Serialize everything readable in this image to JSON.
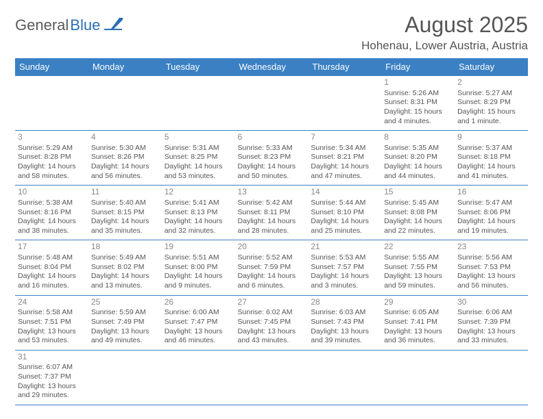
{
  "logo": {
    "dark": "General",
    "blue": "Blue"
  },
  "title": "August 2025",
  "location": "Hohenau, Lower Austria, Austria",
  "colors": {
    "header_bg": "#3a80c3",
    "header_text": "#ffffff",
    "border": "#3a80c3",
    "daynum": "#888888",
    "body_text": "#555555",
    "logo_dark": "#5a5a5a",
    "logo_blue": "#2a6fb5"
  },
  "weekdays": [
    "Sunday",
    "Monday",
    "Tuesday",
    "Wednesday",
    "Thursday",
    "Friday",
    "Saturday"
  ],
  "weeks": [
    [
      null,
      null,
      null,
      null,
      null,
      {
        "n": "1",
        "sr": "Sunrise: 5:26 AM",
        "ss": "Sunset: 8:31 PM",
        "d1": "Daylight: 15 hours",
        "d2": "and 4 minutes."
      },
      {
        "n": "2",
        "sr": "Sunrise: 5:27 AM",
        "ss": "Sunset: 8:29 PM",
        "d1": "Daylight: 15 hours",
        "d2": "and 1 minute."
      }
    ],
    [
      {
        "n": "3",
        "sr": "Sunrise: 5:29 AM",
        "ss": "Sunset: 8:28 PM",
        "d1": "Daylight: 14 hours",
        "d2": "and 58 minutes."
      },
      {
        "n": "4",
        "sr": "Sunrise: 5:30 AM",
        "ss": "Sunset: 8:26 PM",
        "d1": "Daylight: 14 hours",
        "d2": "and 56 minutes."
      },
      {
        "n": "5",
        "sr": "Sunrise: 5:31 AM",
        "ss": "Sunset: 8:25 PM",
        "d1": "Daylight: 14 hours",
        "d2": "and 53 minutes."
      },
      {
        "n": "6",
        "sr": "Sunrise: 5:33 AM",
        "ss": "Sunset: 8:23 PM",
        "d1": "Daylight: 14 hours",
        "d2": "and 50 minutes."
      },
      {
        "n": "7",
        "sr": "Sunrise: 5:34 AM",
        "ss": "Sunset: 8:21 PM",
        "d1": "Daylight: 14 hours",
        "d2": "and 47 minutes."
      },
      {
        "n": "8",
        "sr": "Sunrise: 5:35 AM",
        "ss": "Sunset: 8:20 PM",
        "d1": "Daylight: 14 hours",
        "d2": "and 44 minutes."
      },
      {
        "n": "9",
        "sr": "Sunrise: 5:37 AM",
        "ss": "Sunset: 8:18 PM",
        "d1": "Daylight: 14 hours",
        "d2": "and 41 minutes."
      }
    ],
    [
      {
        "n": "10",
        "sr": "Sunrise: 5:38 AM",
        "ss": "Sunset: 8:16 PM",
        "d1": "Daylight: 14 hours",
        "d2": "and 38 minutes."
      },
      {
        "n": "11",
        "sr": "Sunrise: 5:40 AM",
        "ss": "Sunset: 8:15 PM",
        "d1": "Daylight: 14 hours",
        "d2": "and 35 minutes."
      },
      {
        "n": "12",
        "sr": "Sunrise: 5:41 AM",
        "ss": "Sunset: 8:13 PM",
        "d1": "Daylight: 14 hours",
        "d2": "and 32 minutes."
      },
      {
        "n": "13",
        "sr": "Sunrise: 5:42 AM",
        "ss": "Sunset: 8:11 PM",
        "d1": "Daylight: 14 hours",
        "d2": "and 28 minutes."
      },
      {
        "n": "14",
        "sr": "Sunrise: 5:44 AM",
        "ss": "Sunset: 8:10 PM",
        "d1": "Daylight: 14 hours",
        "d2": "and 25 minutes."
      },
      {
        "n": "15",
        "sr": "Sunrise: 5:45 AM",
        "ss": "Sunset: 8:08 PM",
        "d1": "Daylight: 14 hours",
        "d2": "and 22 minutes."
      },
      {
        "n": "16",
        "sr": "Sunrise: 5:47 AM",
        "ss": "Sunset: 8:06 PM",
        "d1": "Daylight: 14 hours",
        "d2": "and 19 minutes."
      }
    ],
    [
      {
        "n": "17",
        "sr": "Sunrise: 5:48 AM",
        "ss": "Sunset: 8:04 PM",
        "d1": "Daylight: 14 hours",
        "d2": "and 16 minutes."
      },
      {
        "n": "18",
        "sr": "Sunrise: 5:49 AM",
        "ss": "Sunset: 8:02 PM",
        "d1": "Daylight: 14 hours",
        "d2": "and 13 minutes."
      },
      {
        "n": "19",
        "sr": "Sunrise: 5:51 AM",
        "ss": "Sunset: 8:00 PM",
        "d1": "Daylight: 14 hours",
        "d2": "and 9 minutes."
      },
      {
        "n": "20",
        "sr": "Sunrise: 5:52 AM",
        "ss": "Sunset: 7:59 PM",
        "d1": "Daylight: 14 hours",
        "d2": "and 6 minutes."
      },
      {
        "n": "21",
        "sr": "Sunrise: 5:53 AM",
        "ss": "Sunset: 7:57 PM",
        "d1": "Daylight: 14 hours",
        "d2": "and 3 minutes."
      },
      {
        "n": "22",
        "sr": "Sunrise: 5:55 AM",
        "ss": "Sunset: 7:55 PM",
        "d1": "Daylight: 13 hours",
        "d2": "and 59 minutes."
      },
      {
        "n": "23",
        "sr": "Sunrise: 5:56 AM",
        "ss": "Sunset: 7:53 PM",
        "d1": "Daylight: 13 hours",
        "d2": "and 56 minutes."
      }
    ],
    [
      {
        "n": "24",
        "sr": "Sunrise: 5:58 AM",
        "ss": "Sunset: 7:51 PM",
        "d1": "Daylight: 13 hours",
        "d2": "and 53 minutes."
      },
      {
        "n": "25",
        "sr": "Sunrise: 5:59 AM",
        "ss": "Sunset: 7:49 PM",
        "d1": "Daylight: 13 hours",
        "d2": "and 49 minutes."
      },
      {
        "n": "26",
        "sr": "Sunrise: 6:00 AM",
        "ss": "Sunset: 7:47 PM",
        "d1": "Daylight: 13 hours",
        "d2": "and 46 minutes."
      },
      {
        "n": "27",
        "sr": "Sunrise: 6:02 AM",
        "ss": "Sunset: 7:45 PM",
        "d1": "Daylight: 13 hours",
        "d2": "and 43 minutes."
      },
      {
        "n": "28",
        "sr": "Sunrise: 6:03 AM",
        "ss": "Sunset: 7:43 PM",
        "d1": "Daylight: 13 hours",
        "d2": "and 39 minutes."
      },
      {
        "n": "29",
        "sr": "Sunrise: 6:05 AM",
        "ss": "Sunset: 7:41 PM",
        "d1": "Daylight: 13 hours",
        "d2": "and 36 minutes."
      },
      {
        "n": "30",
        "sr": "Sunrise: 6:06 AM",
        "ss": "Sunset: 7:39 PM",
        "d1": "Daylight: 13 hours",
        "d2": "and 33 minutes."
      }
    ],
    [
      {
        "n": "31",
        "sr": "Sunrise: 6:07 AM",
        "ss": "Sunset: 7:37 PM",
        "d1": "Daylight: 13 hours",
        "d2": "and 29 minutes."
      },
      null,
      null,
      null,
      null,
      null,
      null
    ]
  ]
}
